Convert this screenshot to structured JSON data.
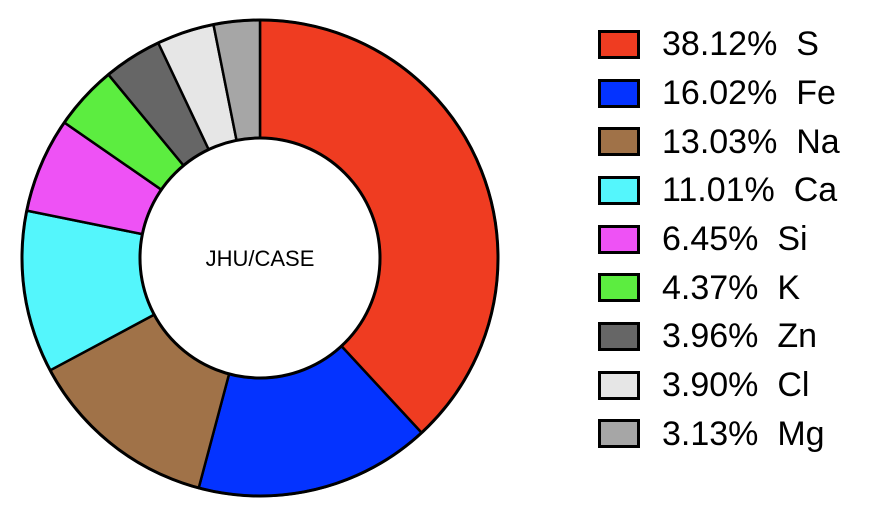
{
  "chart_data": {
    "type": "pie",
    "donut": true,
    "center_label": "JHU/CASE",
    "slices": [
      {
        "label": "S",
        "value": 38.12,
        "percent_text": "38.12%",
        "color": "#ef3c21"
      },
      {
        "label": "Fe",
        "value": 16.02,
        "percent_text": "16.02%",
        "color": "#0433ff"
      },
      {
        "label": "Na",
        "value": 13.03,
        "percent_text": "13.03%",
        "color": "#a07248"
      },
      {
        "label": "Ca",
        "value": 11.01,
        "percent_text": "11.01%",
        "color": "#54f6fc"
      },
      {
        "label": "Si",
        "value": 6.45,
        "percent_text": "6.45%",
        "color": "#ee52f5"
      },
      {
        "label": "K",
        "value": 4.37,
        "percent_text": "4.37%",
        "color": "#5ced40"
      },
      {
        "label": "Zn",
        "value": 3.96,
        "percent_text": "3.96%",
        "color": "#666666"
      },
      {
        "label": "Cl",
        "value": 3.9,
        "percent_text": "3.90%",
        "color": "#e6e6e6"
      },
      {
        "label": "Mg",
        "value": 3.13,
        "percent_text": "3.13%",
        "color": "#a6a6a6"
      }
    ],
    "start_angle": "12 o'clock",
    "direction": "clockwise",
    "legend_position": "right"
  }
}
